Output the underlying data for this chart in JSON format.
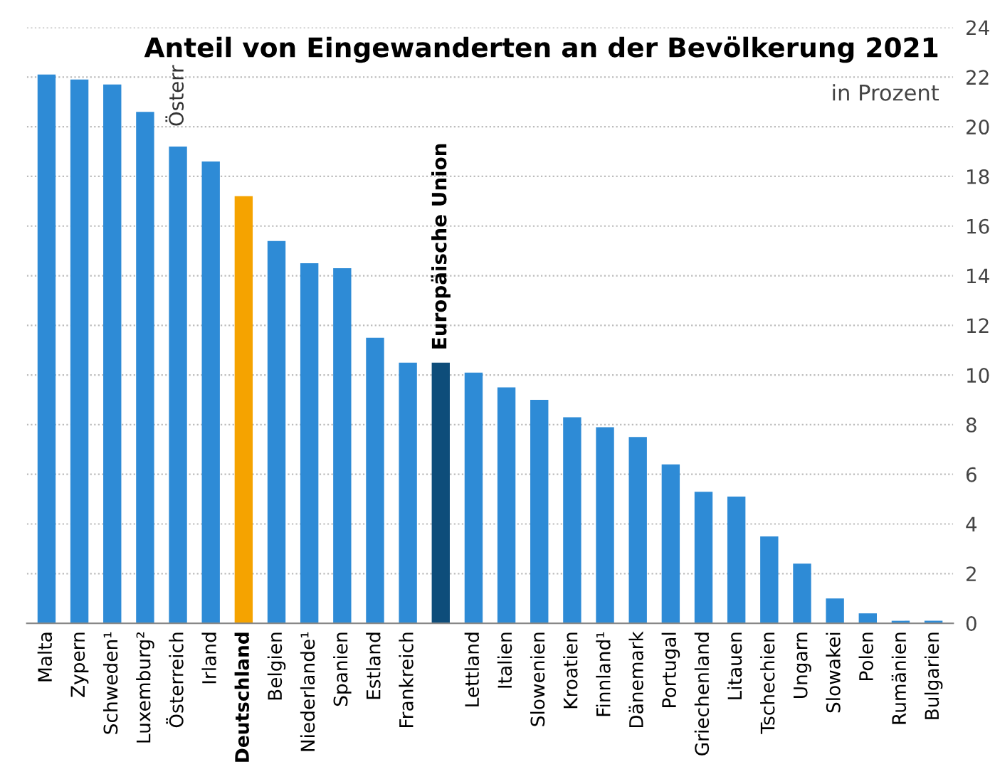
{
  "chart_data": {
    "type": "bar",
    "title": "Anteil von Eingewanderten an der Bevölkerung 2021",
    "subtitle": "in Prozent",
    "categories": [
      "Malta",
      "Zypern",
      "Schweden¹",
      "Luxemburg²",
      "Österreich",
      "Irland",
      "Deutschland",
      "Belgien",
      "Niederlande¹",
      "Spanien",
      "Estland",
      "Frankreich",
      null,
      "Lettland",
      "Italien",
      "Slowenien",
      "Kroatien",
      "Finnland¹",
      "Dänemark",
      "Portugal",
      "Griechenland",
      "Litauen",
      "Tschechien",
      "Ungarn",
      "Slowakei",
      "Polen",
      "Rumänien",
      "Bulgarien"
    ],
    "values": [
      22.1,
      21.9,
      21.7,
      20.6,
      19.2,
      18.6,
      17.2,
      15.4,
      14.5,
      14.3,
      11.5,
      10.5,
      10.5,
      10.1,
      9.5,
      9.0,
      8.3,
      7.9,
      7.5,
      6.4,
      5.3,
      5.1,
      3.5,
      2.4,
      1.0,
      0.4,
      0.1,
      0.1
    ],
    "colors": [
      "#2e8bd6",
      "#2e8bd6",
      "#2e8bd6",
      "#2e8bd6",
      "#2e8bd6",
      "#2e8bd6",
      "#f5a300",
      "#2e8bd6",
      "#2e8bd6",
      "#2e8bd6",
      "#2e8bd6",
      "#2e8bd6",
      "#0e4d7a",
      "#2e8bd6",
      "#2e8bd6",
      "#2e8bd6",
      "#2e8bd6",
      "#2e8bd6",
      "#2e8bd6",
      "#2e8bd6",
      "#2e8bd6",
      "#2e8bd6",
      "#2e8bd6",
      "#2e8bd6",
      "#2e8bd6",
      "#2e8bd6",
      "#2e8bd6",
      "#2e8bd6"
    ],
    "annotations": [
      "Österr",
      {
        "text": "Europäische Union",
        "y": 10.5
      }
    ],
    "ylim": [
      0,
      24
    ],
    "yticks": [
      0,
      2,
      4,
      6,
      8,
      10,
      12,
      14,
      16,
      18,
      20,
      22,
      24
    ],
    "grid": "y"
  }
}
